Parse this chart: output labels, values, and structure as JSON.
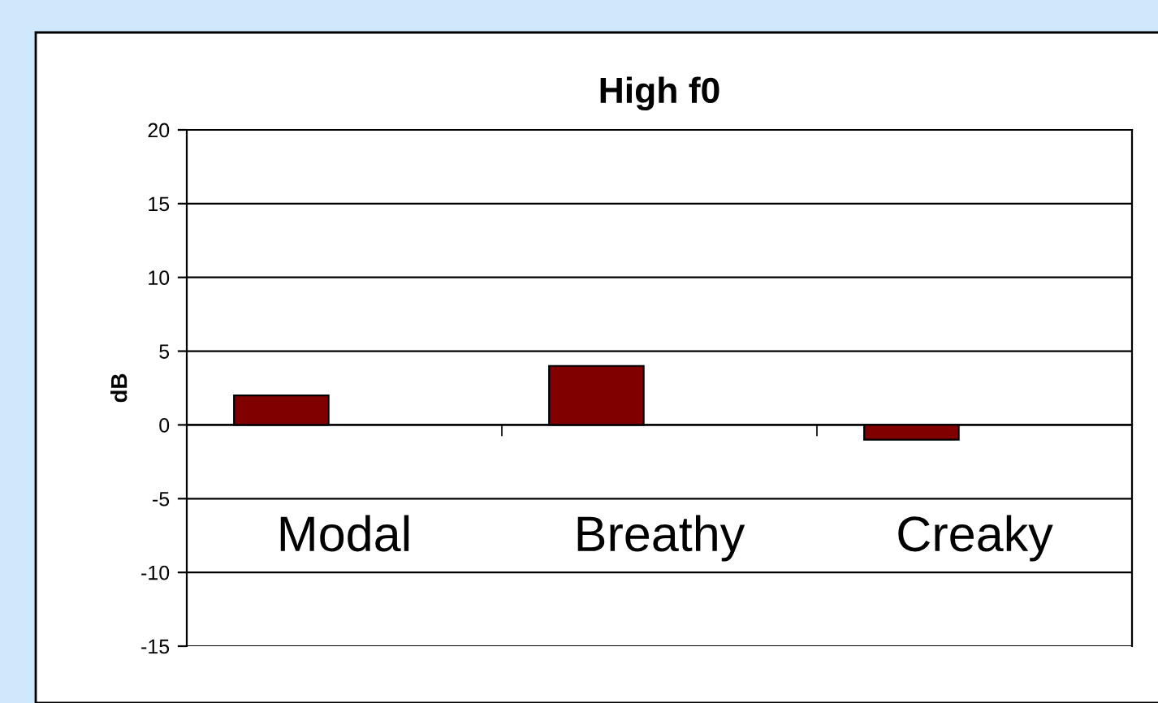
{
  "chart_data": {
    "type": "bar",
    "title": "High f0",
    "ylabel": "dB",
    "categories": [
      "Modal",
      "Breathy",
      "Creaky"
    ],
    "series": [
      {
        "color": "#800000",
        "values": [
          2,
          4,
          -1
        ]
      }
    ],
    "ylim": [
      -15,
      20
    ],
    "yticks": [
      -15,
      -10,
      -5,
      0,
      5,
      10,
      15,
      20
    ],
    "grid": "y",
    "legend": false
  }
}
